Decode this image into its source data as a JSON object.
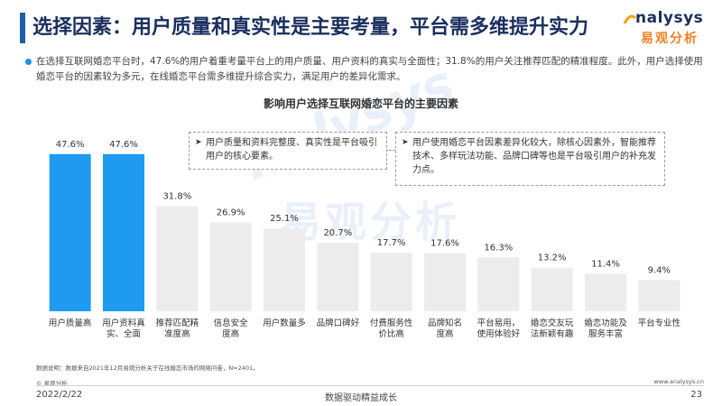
{
  "header": {
    "title": "选择因素：用户质量和真实性是主要考量，平台需多维提升实力",
    "logo_en": "nalysys",
    "logo_cn": "易观分析"
  },
  "summary": "在选择互联网婚恋平台时，47.6%的用户着重考量平台上的用户质量、用户资料的真实与全面性；31.8%的用户关注推荐匹配的精准程度。此外，用户选择使用婚恋平台的因素较为多元，在线婚恋平台需多维提升综合实力，满足用户的差异化需求。",
  "watermark": {
    "en": "nalysys",
    "cn": "易观分析"
  },
  "notes": [
    "用户质量和资料完整度、真实性是平台吸引用户的核心要素。",
    "用户使用婚恋平台因素差异化较大，除核心因素外，智能推荐技术、多样玩法功能、品牌口碑等也是平台吸引用户的补充发力点。"
  ],
  "colors": {
    "highlight": "#1e9bf0",
    "normal": "#ececec",
    "title": "#1a2f5e",
    "accent": "#1e90e8"
  },
  "chart_data": {
    "type": "bar",
    "title": "影响用户选择互联网婚恋平台的主要因素",
    "categories": [
      "用户质量高",
      "用户资料真实、全面",
      "推荐匹配精准度高",
      "信息安全度高",
      "用户数量多",
      "品牌口碑好",
      "付费服务性价比高",
      "品牌知名度高",
      "平台易用，使用体验好",
      "婚恋交友玩法新颖有趣",
      "婚恋功能及服务丰富",
      "平台专业性"
    ],
    "category_lines": [
      [
        "用户质量高"
      ],
      [
        "用户资料真",
        "实、全面"
      ],
      [
        "推荐匹配精",
        "准度高"
      ],
      [
        "信息安全",
        "度高"
      ],
      [
        "用户数量多"
      ],
      [
        "品牌口碑好"
      ],
      [
        "付费服务性",
        "价比高"
      ],
      [
        "品牌知名",
        "度高"
      ],
      [
        "平台易用，",
        "使用体验好"
      ],
      [
        "婚恋交友玩",
        "法新颖有趣"
      ],
      [
        "婚恋功能及",
        "服务丰富"
      ],
      [
        "平台专业性"
      ]
    ],
    "values": [
      47.6,
      47.6,
      31.8,
      26.9,
      25.1,
      20.7,
      17.7,
      17.6,
      16.3,
      13.2,
      11.4,
      9.4
    ],
    "value_labels": [
      "47.6%",
      "47.6%",
      "31.8%",
      "26.9%",
      "25.1%",
      "20.7%",
      "17.7%",
      "17.6%",
      "16.3%",
      "13.2%",
      "11.4%",
      "9.4%"
    ],
    "highlighted": [
      0,
      1
    ],
    "ylim": [
      0,
      50
    ],
    "grid": false,
    "legend": "none"
  },
  "footer": {
    "note": "数据说明：数据来自2021年12月易观分析关于在线婚恋市场的网络问卷，N=2401。",
    "copyright": "© 易观分析",
    "website": "www.analysys.cn",
    "date": "2022/2/22",
    "slogan": "数据驱动精益成长",
    "page": "23"
  }
}
